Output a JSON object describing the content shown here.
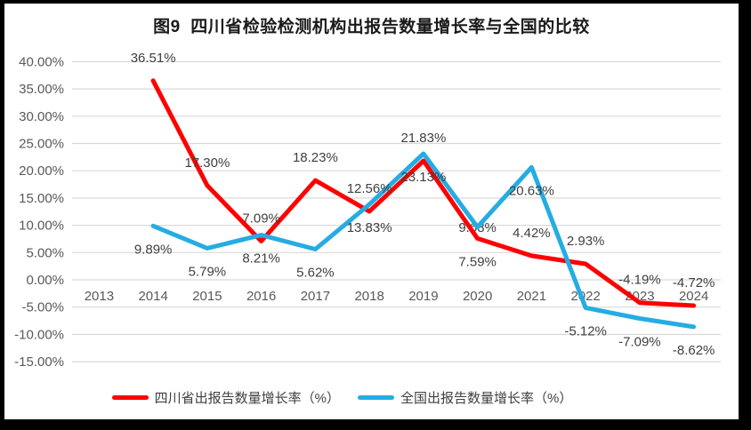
{
  "chart_data": {
    "type": "line",
    "title": "图9  四川省检验检测机构出报告数量增长率与全国的比较",
    "categories": [
      "2013",
      "2014",
      "2015",
      "2016",
      "2017",
      "2018",
      "2019",
      "2020",
      "2021",
      "2022",
      "2023",
      "2024"
    ],
    "series": [
      {
        "id": "sichuan",
        "name": "四川省出报告数量增长率（%）",
        "color": "#FF0000",
        "values": [
          null,
          36.51,
          17.3,
          7.09,
          18.23,
          12.56,
          21.83,
          7.59,
          4.42,
          2.93,
          -4.19,
          -4.72
        ],
        "labels": [
          null,
          "36.51%",
          "17.30%",
          "7.09%",
          "18.23%",
          "12.56%",
          "21.83%",
          "7.59%",
          "4.42%",
          "2.93%",
          "-4.19%",
          "-4.72%"
        ],
        "label_side": [
          null,
          "above",
          "above",
          "above",
          "above",
          "above",
          "above",
          "below",
          "above",
          "above",
          "above",
          "above"
        ]
      },
      {
        "id": "national",
        "name": "全国出报告数量增长率（%）",
        "color": "#25ACE3",
        "values": [
          null,
          9.89,
          5.79,
          8.21,
          5.62,
          13.83,
          23.13,
          9.68,
          20.63,
          -5.12,
          -7.09,
          -8.62
        ],
        "labels": [
          null,
          "9.89%",
          "5.79%",
          "8.21%",
          "5.62%",
          "13.83%",
          "23.13%",
          "9.68%",
          "20.63%",
          "-5.12%",
          "-7.09%",
          "-8.62%"
        ],
        "label_side": [
          null,
          "below",
          "below",
          "below",
          "below",
          "below",
          "below",
          "center",
          "below",
          "below",
          "below",
          "below"
        ]
      }
    ],
    "y_axis": {
      "min": -15,
      "max": 40,
      "step": 5,
      "tick_labels": [
        "40.00%",
        "35.00%",
        "30.00%",
        "25.00%",
        "20.00%",
        "15.00%",
        "10.00%",
        "5.00%",
        "0.00%",
        "-5.00%",
        "-10.00%",
        "-15.00%"
      ]
    },
    "grid": true,
    "legend_position": "bottom",
    "colors": {
      "gridline": "#D9D9D9",
      "axis_tick_text": "#595959",
      "data_label_text": "#3F3F3F"
    }
  }
}
